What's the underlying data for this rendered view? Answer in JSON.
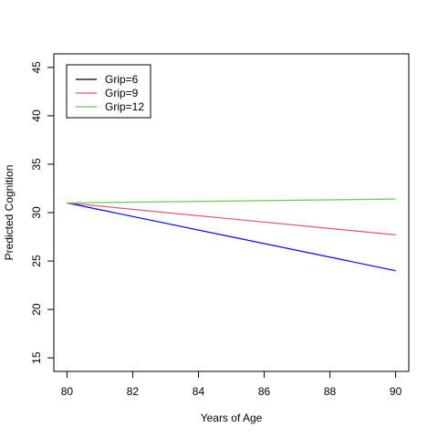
{
  "chart_data": {
    "type": "line",
    "title": "",
    "xlabel": "Years of Age",
    "ylabel": "Predicted Cognition",
    "xlim": [
      79.6,
      90.4
    ],
    "ylim": [
      13.6,
      46.4
    ],
    "xticks": [
      80,
      82,
      84,
      86,
      88,
      90
    ],
    "yticks": [
      15,
      20,
      25,
      30,
      35,
      40,
      45
    ],
    "grid": false,
    "legend_position": "top-left",
    "legend": [
      {
        "name": "Grip=6",
        "color": "#000000"
      },
      {
        "name": "Grip=9",
        "color": "#DF536B"
      },
      {
        "name": "Grip=12",
        "color": "#61D04F"
      }
    ],
    "series": [
      {
        "color": "#0000FF",
        "x": [
          80,
          90
        ],
        "y": [
          31.0,
          24.0
        ]
      },
      {
        "color": "#DF536B",
        "x": [
          80,
          90
        ],
        "y": [
          31.0,
          27.7
        ]
      },
      {
        "color": "#61D04F",
        "x": [
          80,
          90
        ],
        "y": [
          31.0,
          31.4
        ]
      }
    ]
  }
}
